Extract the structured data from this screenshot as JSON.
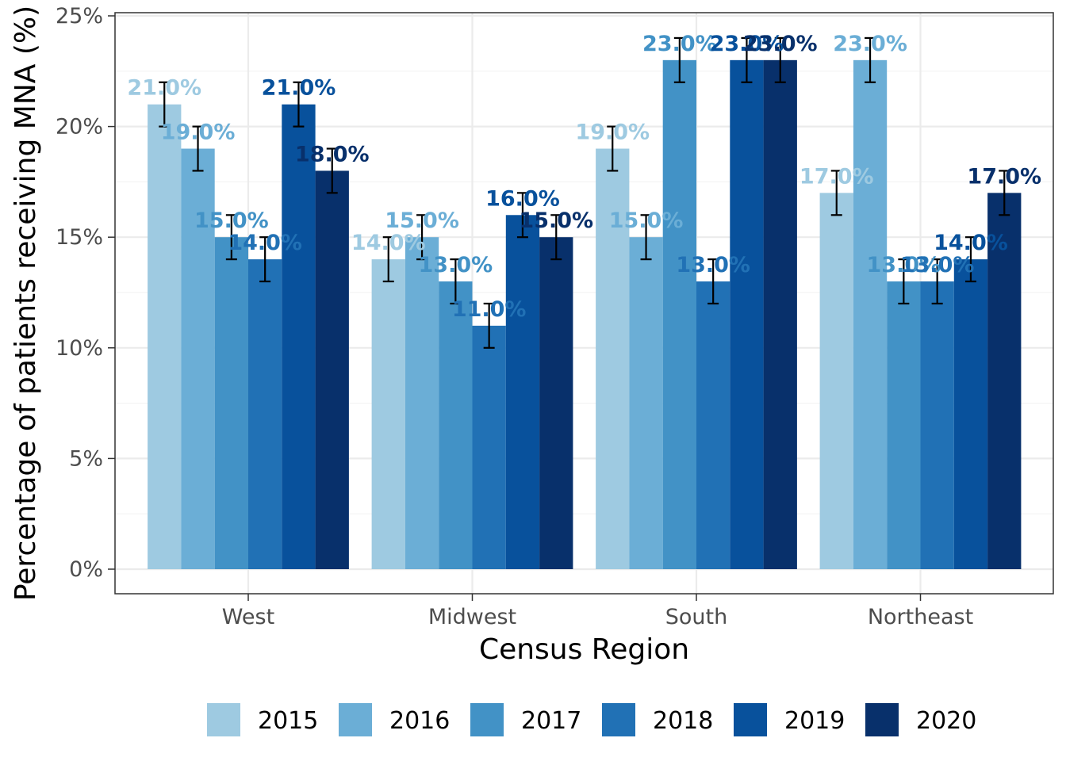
{
  "chart_data": {
    "type": "bar",
    "title": "",
    "xlabel": "Census Region",
    "ylabel": "Percentage of patients receiving MNA (%)",
    "categories": [
      "West",
      "Midwest",
      "South",
      "Northeast"
    ],
    "ylim": [
      0,
      25
    ],
    "yticks": [
      0,
      5,
      10,
      15,
      20,
      25
    ],
    "ytick_labels": [
      "0%",
      "5%",
      "10%",
      "15%",
      "20%",
      "25%"
    ],
    "grid": true,
    "legend_position": "bottom",
    "error_bars": true,
    "series": [
      {
        "name": "2015",
        "color": "#9ecae1",
        "values": [
          21,
          14,
          19,
          17
        ],
        "err_low": [
          20,
          13,
          18,
          16
        ],
        "err_high": [
          22,
          15,
          20,
          18
        ],
        "labels": [
          "21.0%",
          "14.0%",
          "19.0%",
          "17.0%"
        ]
      },
      {
        "name": "2016",
        "color": "#6baed6",
        "values": [
          19,
          15,
          15,
          23
        ],
        "err_low": [
          18,
          14,
          14,
          22
        ],
        "err_high": [
          20,
          16,
          16,
          24
        ],
        "labels": [
          "19.0%",
          "15.0%",
          "15.0%",
          "23.0%"
        ]
      },
      {
        "name": "2017",
        "color": "#4292c6",
        "values": [
          15,
          13,
          23,
          13
        ],
        "err_low": [
          14,
          12,
          22,
          12
        ],
        "err_high": [
          16,
          14,
          24,
          14
        ],
        "labels": [
          "15.0%",
          "13.0%",
          "23.0%",
          "13.0%"
        ]
      },
      {
        "name": "2018",
        "color": "#2171b5",
        "values": [
          14,
          11,
          13,
          13
        ],
        "err_low": [
          13,
          10,
          12,
          12
        ],
        "err_high": [
          15,
          12,
          14,
          14
        ],
        "labels": [
          "14.0%",
          "11.0%",
          "13.0%",
          "13.0%"
        ]
      },
      {
        "name": "2019",
        "color": "#08519c",
        "values": [
          21,
          16,
          23,
          14
        ],
        "err_low": [
          20,
          15,
          22,
          13
        ],
        "err_high": [
          22,
          17,
          24,
          15
        ],
        "labels": [
          "21.0%",
          "16.0%",
          "23.0%",
          "14.0%"
        ]
      },
      {
        "name": "2020",
        "color": "#08306b",
        "values": [
          18,
          15,
          23,
          17
        ],
        "err_low": [
          17,
          14,
          22,
          16
        ],
        "err_high": [
          19,
          16,
          24,
          18
        ],
        "labels": [
          "18.0%",
          "15.0%",
          "23.0%",
          "17.0%"
        ]
      }
    ]
  }
}
